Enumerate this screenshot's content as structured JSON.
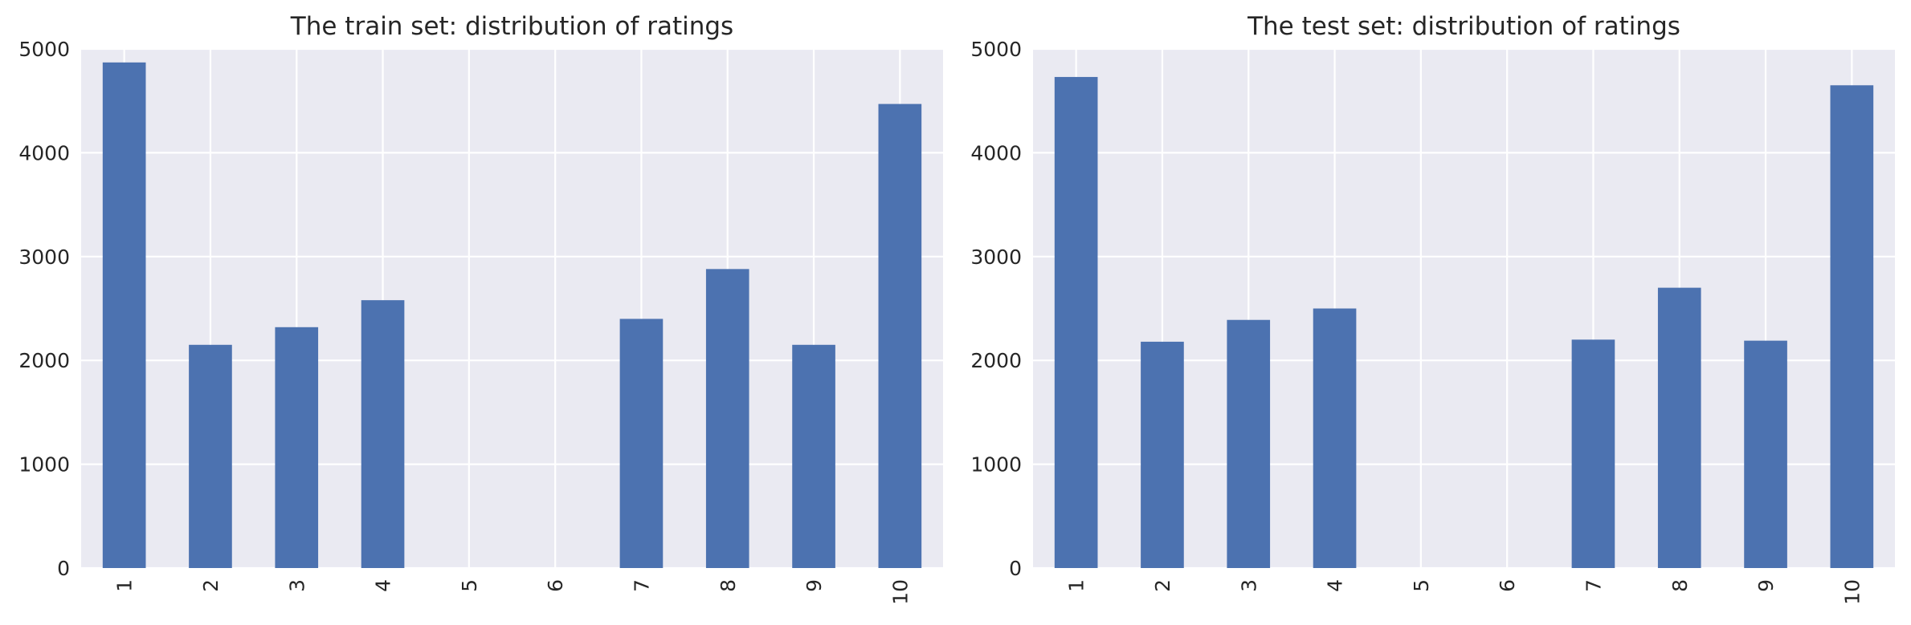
{
  "chart_data": [
    {
      "type": "bar",
      "title": "The train set: distribution of ratings",
      "xlabel": "",
      "ylabel": "",
      "categories": [
        "1",
        "2",
        "3",
        "4",
        "5",
        "6",
        "7",
        "8",
        "9",
        "10"
      ],
      "values": [
        4870,
        2150,
        2320,
        2580,
        0,
        0,
        2400,
        2880,
        2150,
        4470
      ],
      "ylim": [
        0,
        5000
      ],
      "yticks": [
        "0",
        "1000",
        "2000",
        "3000",
        "4000",
        "5000"
      ],
      "grid": true,
      "legend": "none",
      "bar_color": "#4c72b0",
      "background_color": "#eaeaf2"
    },
    {
      "type": "bar",
      "title": "The test set: distribution of ratings",
      "xlabel": "",
      "ylabel": "",
      "categories": [
        "1",
        "2",
        "3",
        "4",
        "5",
        "6",
        "7",
        "8",
        "9",
        "10"
      ],
      "values": [
        4730,
        2180,
        2390,
        2500,
        0,
        0,
        2200,
        2700,
        2190,
        4650
      ],
      "ylim": [
        0,
        5000
      ],
      "yticks": [
        "0",
        "1000",
        "2000",
        "3000",
        "4000",
        "5000"
      ],
      "grid": true,
      "legend": "none",
      "bar_color": "#4c72b0",
      "background_color": "#eaeaf2"
    }
  ]
}
